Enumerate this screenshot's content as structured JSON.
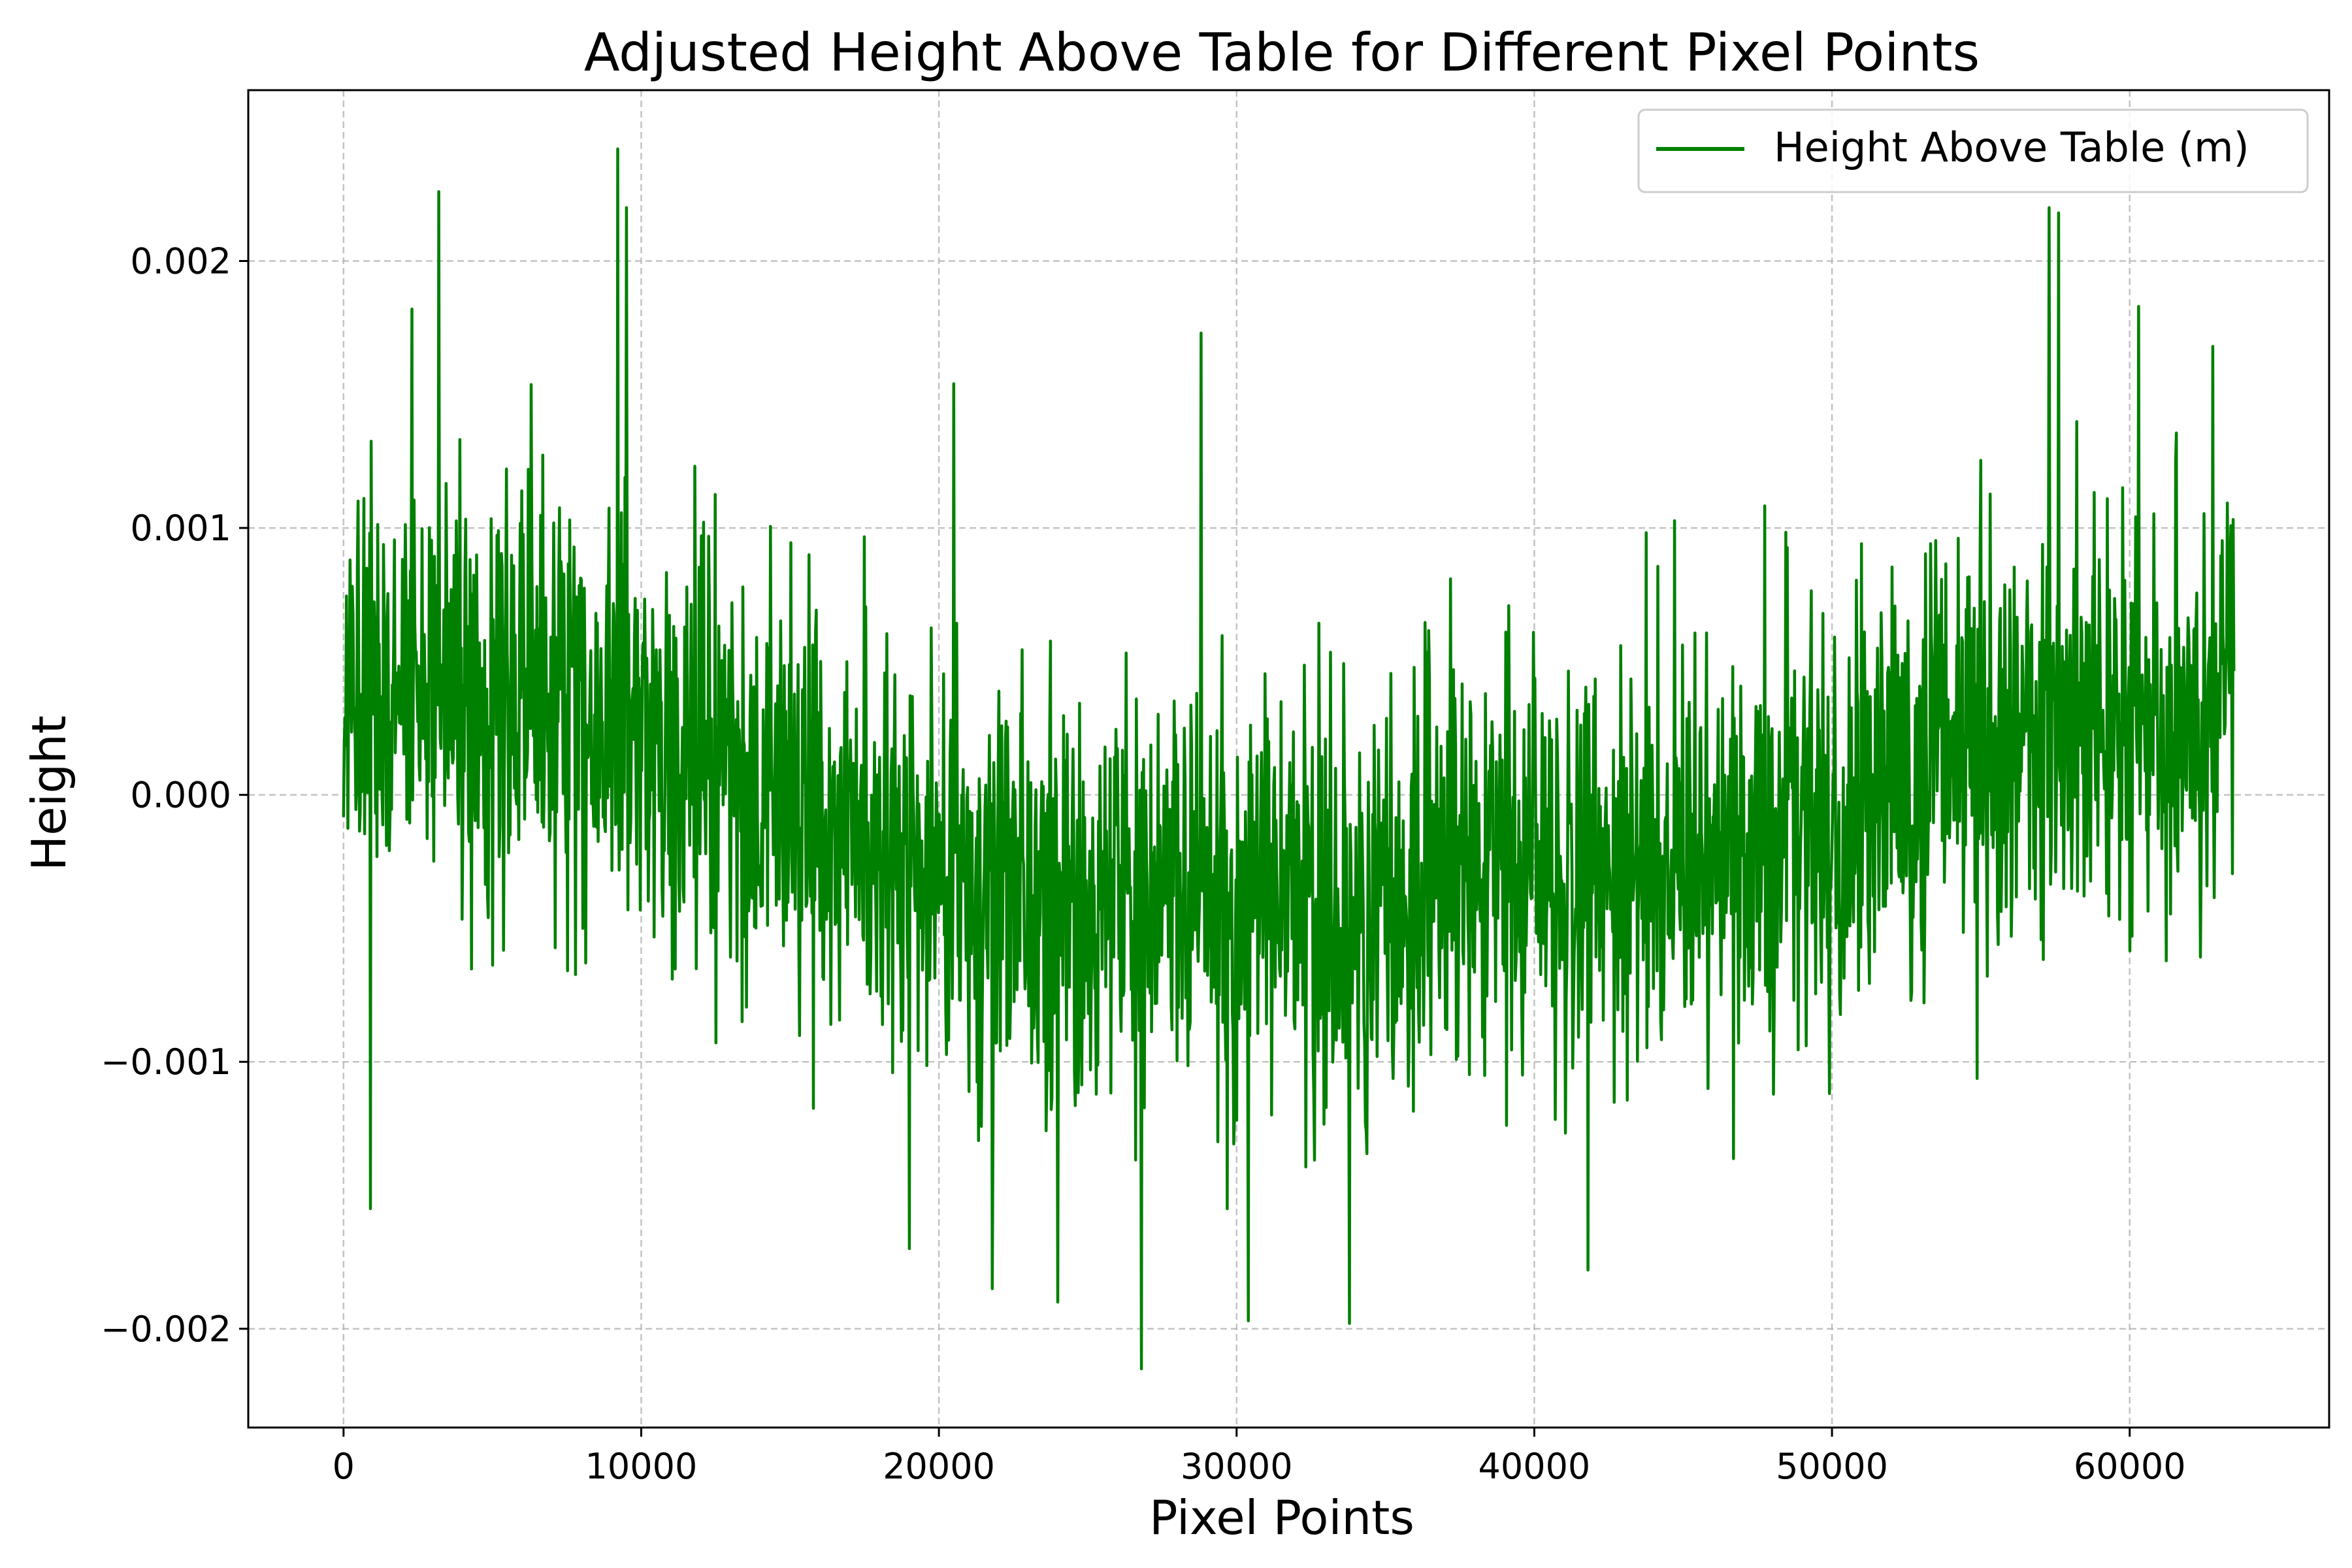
{
  "chart_data": {
    "type": "line",
    "title": "Adjusted Height Above Table for Different Pixel Points",
    "xlabel": "Pixel Points",
    "ylabel": "Height",
    "xlim": [
      -3200,
      66700
    ],
    "ylim": [
      -0.00237,
      0.00264
    ],
    "x_ticks": [
      0,
      10000,
      20000,
      30000,
      40000,
      50000,
      60000
    ],
    "x_tick_labels": [
      "0",
      "10000",
      "20000",
      "30000",
      "40000",
      "50000",
      "60000"
    ],
    "y_ticks": [
      -0.002,
      -0.001,
      0.0,
      0.001,
      0.002
    ],
    "y_tick_labels": [
      "−0.002",
      "−0.001",
      "0.000",
      "0.001",
      "0.002"
    ],
    "grid": true,
    "legend_position": "top-right",
    "colors": {
      "series": "#008000"
    },
    "series": [
      {
        "name": "Height Above Table (m)",
        "x_start": 0,
        "x_end": 63500,
        "trend_points": [
          {
            "x": 0,
            "y": 0.00035
          },
          {
            "x": 5000,
            "y": 0.0004
          },
          {
            "x": 10000,
            "y": 0.00025
          },
          {
            "x": 15000,
            "y": -0.0001
          },
          {
            "x": 20000,
            "y": -0.0003
          },
          {
            "x": 25000,
            "y": -0.0004
          },
          {
            "x": 30000,
            "y": -0.0004
          },
          {
            "x": 35000,
            "y": -0.0004
          },
          {
            "x": 40000,
            "y": -0.0003
          },
          {
            "x": 45000,
            "y": -0.00025
          },
          {
            "x": 50000,
            "y": -0.0001
          },
          {
            "x": 55000,
            "y": 0.0002
          },
          {
            "x": 60000,
            "y": 0.0003
          },
          {
            "x": 63500,
            "y": 0.0003
          }
        ],
        "noise_amplitude": 0.0004,
        "peaks": [
          {
            "x": 3200,
            "y": 0.00226
          },
          {
            "x": 9200,
            "y": 0.00242
          },
          {
            "x": 9500,
            "y": 0.0022
          },
          {
            "x": 28800,
            "y": 0.00173
          },
          {
            "x": 57300,
            "y": 0.0022
          },
          {
            "x": 57600,
            "y": 0.00218
          },
          {
            "x": 2300,
            "y": 0.00182
          },
          {
            "x": 20500,
            "y": 0.00154
          },
          {
            "x": 60300,
            "y": 0.00183
          },
          {
            "x": 62800,
            "y": 0.00168
          }
        ],
        "troughs": [
          {
            "x": 900,
            "y": -0.00155
          },
          {
            "x": 24000,
            "y": -0.0019
          },
          {
            "x": 26800,
            "y": -0.00215
          },
          {
            "x": 30400,
            "y": -0.00197
          },
          {
            "x": 33800,
            "y": -0.00198
          },
          {
            "x": 21800,
            "y": -0.00185
          },
          {
            "x": 19000,
            "y": -0.0017
          },
          {
            "x": 41800,
            "y": -0.00178
          }
        ]
      }
    ]
  }
}
